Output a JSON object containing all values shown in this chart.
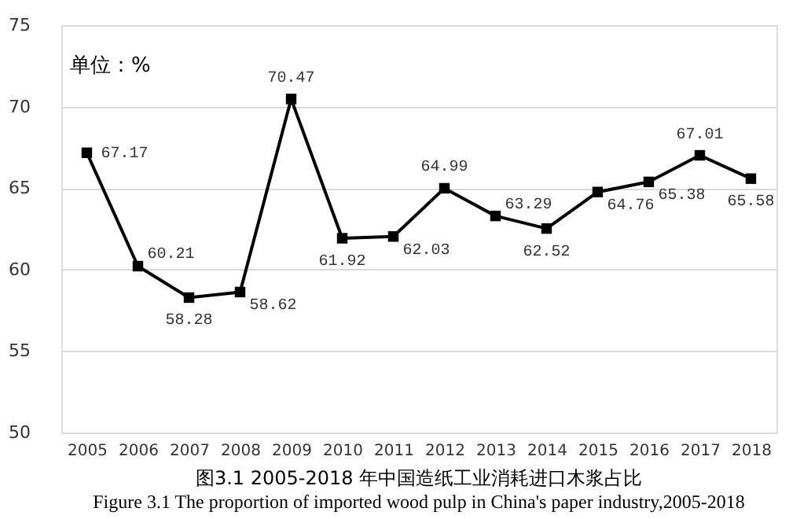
{
  "chart_data": {
    "type": "line",
    "title": "图3.1 2005-2018 年中国造纸工业消耗进口木浆占比",
    "subtitle": "Figure 3.1 The proportion of imported wood pulp in China's paper industry,2005-2018",
    "ylabel": "单位：%",
    "categories": [
      "2005",
      "2006",
      "2007",
      "2008",
      "2009",
      "2010",
      "2011",
      "2012",
      "2013",
      "2014",
      "2015",
      "2016",
      "2017",
      "2018"
    ],
    "series": [
      {
        "color": "#000000",
        "values": [
          67.17,
          60.21,
          58.28,
          58.62,
          70.47,
          61.92,
          62.03,
          64.99,
          63.29,
          62.52,
          64.76,
          65.38,
          67.01,
          65.58
        ]
      }
    ],
    "ylim": [
      50,
      75
    ],
    "yticks": [
      50,
      55,
      60,
      65,
      70,
      75
    ],
    "grid": "y",
    "marker": "square",
    "line_style": "solid",
    "data_labels": true,
    "legend": false
  }
}
